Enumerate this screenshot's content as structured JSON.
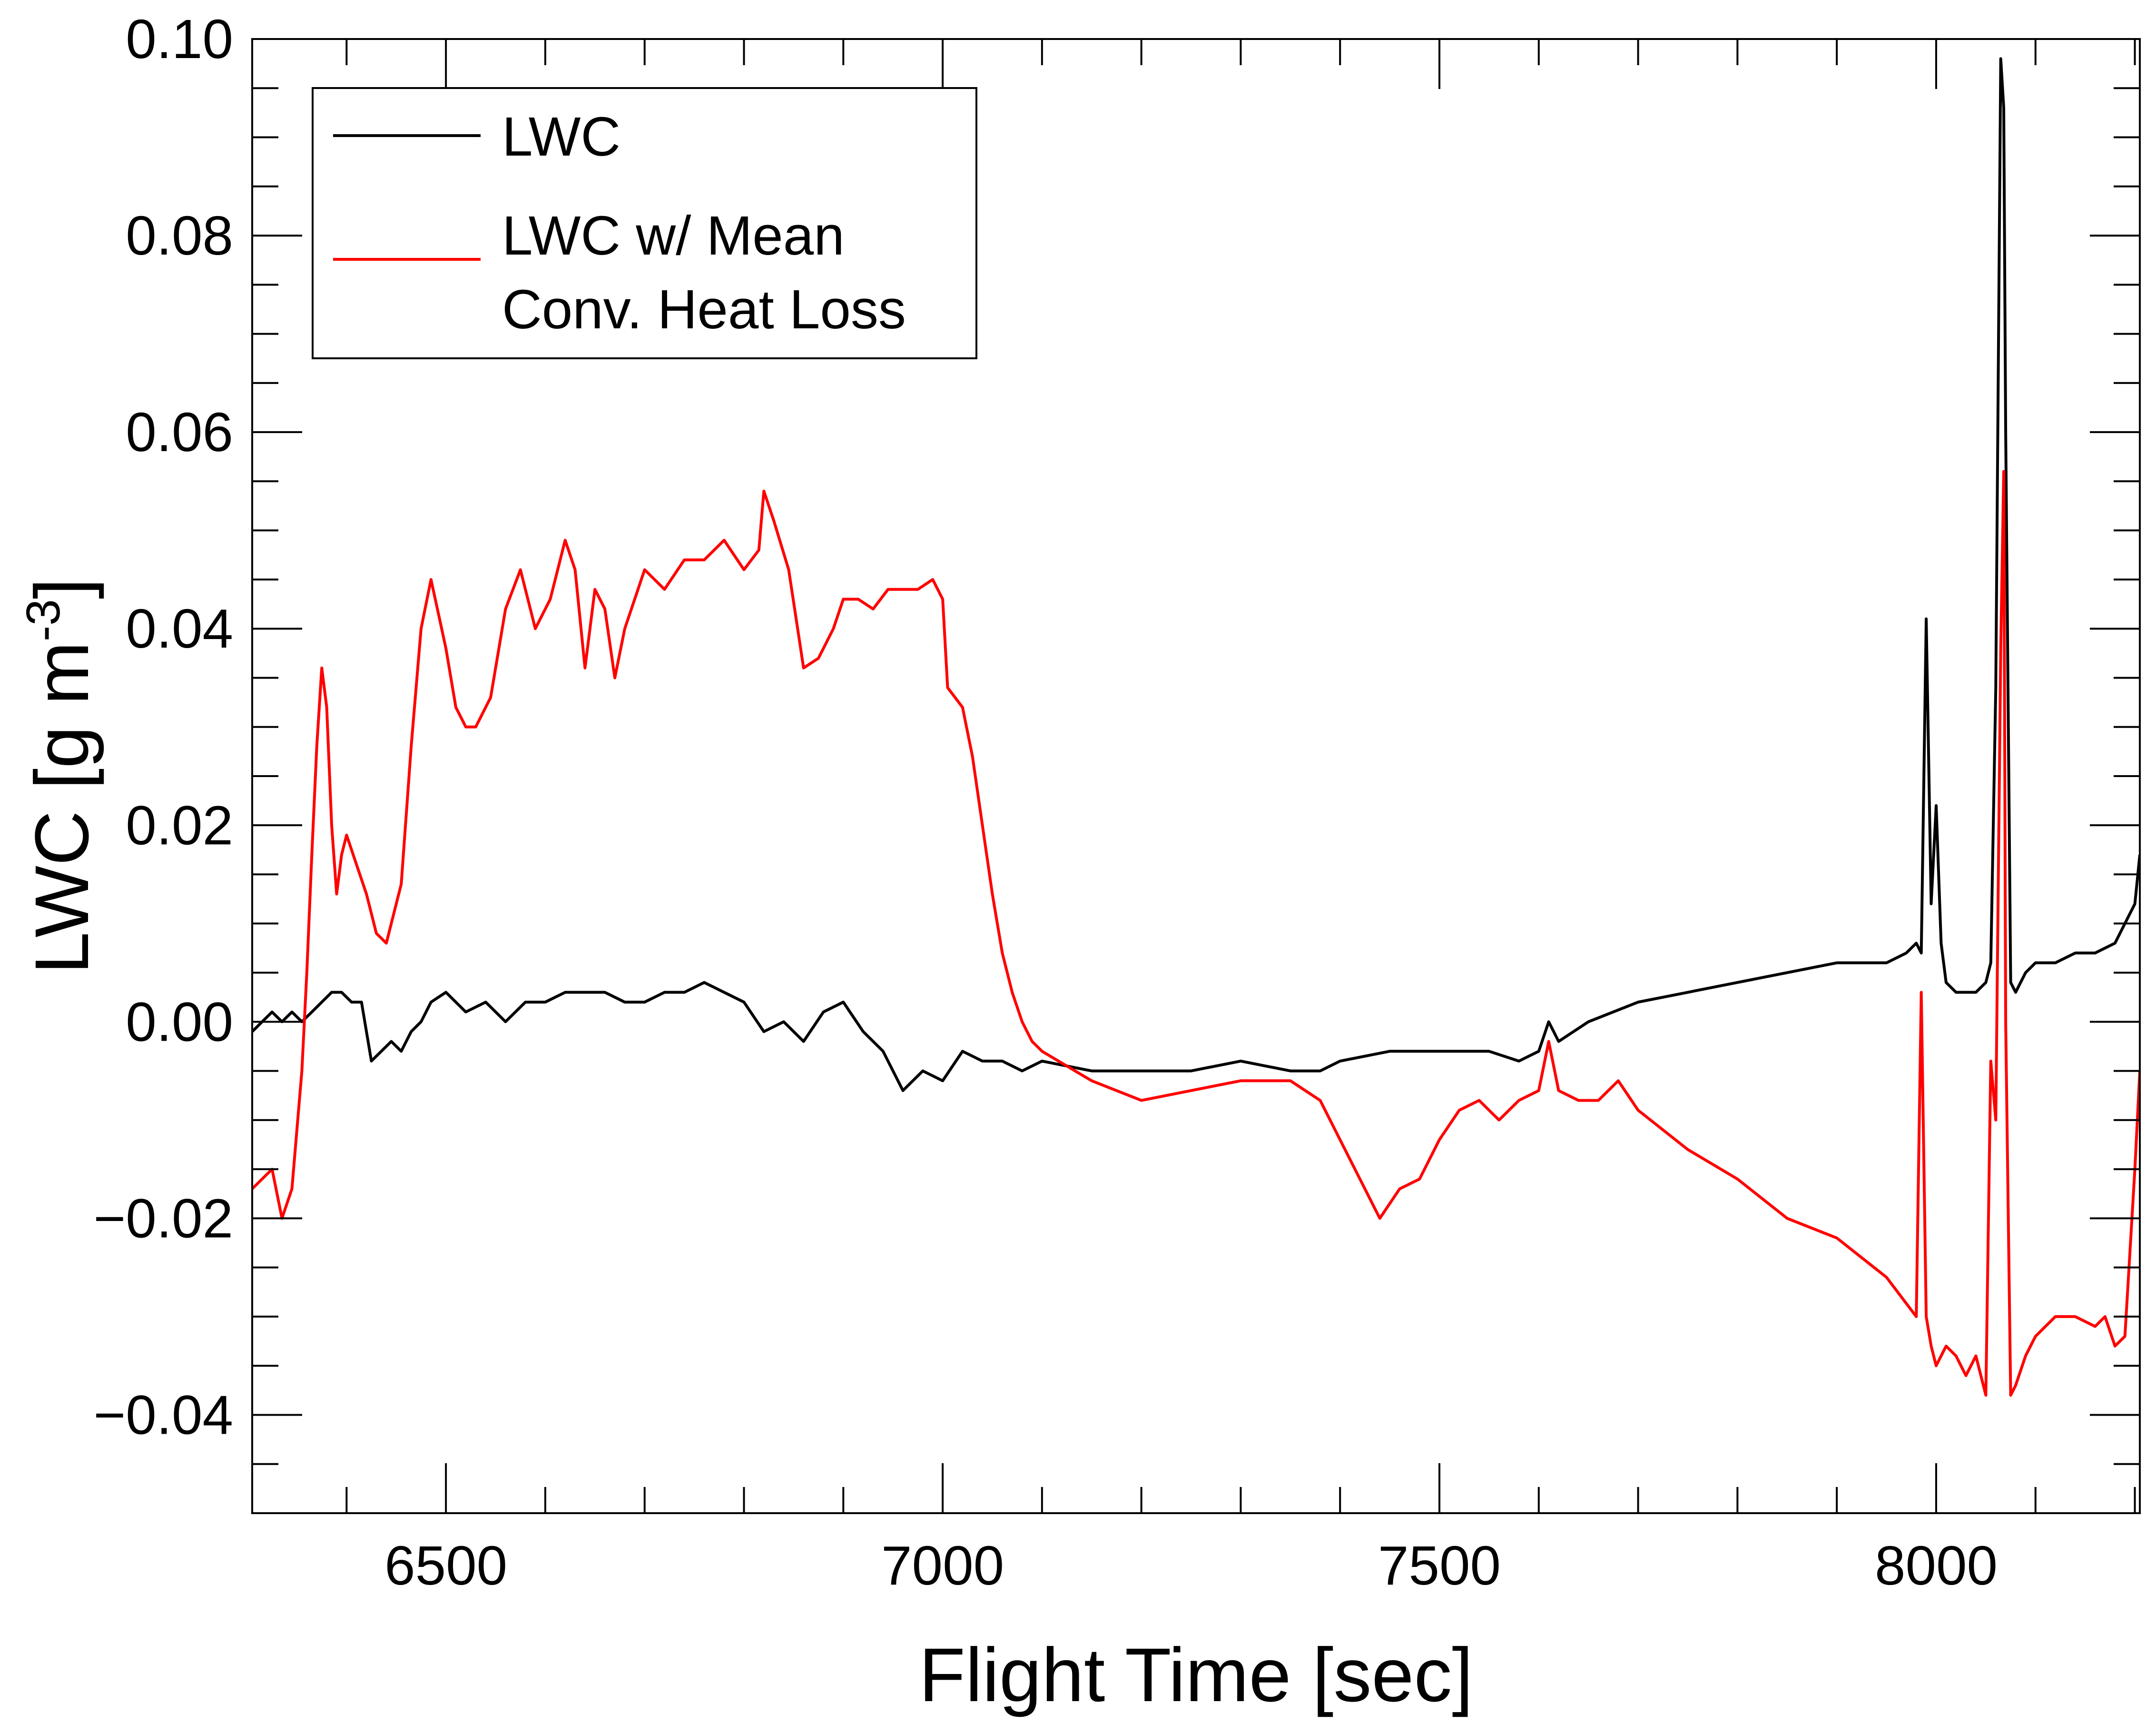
{
  "chart_data": {
    "type": "line",
    "xlabel": "Flight Time [sec]",
    "ylabel_main": "LWC [g m",
    "ylabel_sup": "-3",
    "ylabel_close": "]",
    "xlim": [
      6305,
      8205
    ],
    "ylim": [
      -0.05,
      0.1
    ],
    "x_ticks": [
      6500,
      7000,
      7500,
      8000
    ],
    "x_tick_labels": [
      "6500",
      "7000",
      "7500",
      "8000"
    ],
    "x_minor_step": 100,
    "y_ticks": [
      -0.04,
      -0.02,
      0.0,
      0.02,
      0.04,
      0.06,
      0.08,
      0.1
    ],
    "y_tick_labels": [
      "−0.04",
      "−0.02",
      "0.00",
      "0.02",
      "0.04",
      "0.06",
      "0.08",
      "0.10"
    ],
    "y_minor_step": 0.005,
    "grid": false,
    "legend_position": "top-left",
    "series": [
      {
        "name": "LWC",
        "color": "#000000",
        "x": [
          6305,
          6315,
          6325,
          6335,
          6345,
          6355,
          6365,
          6375,
          6385,
          6395,
          6405,
          6415,
          6425,
          6435,
          6445,
          6455,
          6465,
          6475,
          6485,
          6500,
          6520,
          6540,
          6560,
          6580,
          6600,
          6620,
          6640,
          6660,
          6680,
          6700,
          6720,
          6740,
          6760,
          6780,
          6800,
          6820,
          6840,
          6860,
          6880,
          6900,
          6920,
          6940,
          6960,
          6980,
          7000,
          7020,
          7040,
          7060,
          7080,
          7100,
          7150,
          7200,
          7250,
          7300,
          7350,
          7380,
          7400,
          7450,
          7500,
          7550,
          7580,
          7600,
          7610,
          7620,
          7650,
          7700,
          7750,
          7800,
          7850,
          7900,
          7950,
          7970,
          7980,
          7985,
          7990,
          7995,
          8000,
          8005,
          8010,
          8020,
          8030,
          8040,
          8050,
          8055,
          8060,
          8065,
          8068,
          8070,
          8075,
          8080,
          8090,
          8100,
          8120,
          8140,
          8160,
          8180,
          8190,
          8200,
          8205
        ],
        "y": [
          -0.001,
          0.0,
          0.001,
          0.0,
          0.001,
          0.0,
          0.001,
          0.002,
          0.003,
          0.003,
          0.002,
          0.002,
          -0.004,
          -0.003,
          -0.002,
          -0.003,
          -0.001,
          0.0,
          0.002,
          0.003,
          0.001,
          0.002,
          0.0,
          0.002,
          0.002,
          0.003,
          0.003,
          0.003,
          0.002,
          0.002,
          0.003,
          0.003,
          0.004,
          0.003,
          0.002,
          -0.001,
          0.0,
          -0.002,
          0.001,
          0.002,
          -0.001,
          -0.003,
          -0.007,
          -0.005,
          -0.006,
          -0.003,
          -0.004,
          -0.004,
          -0.005,
          -0.004,
          -0.005,
          -0.005,
          -0.005,
          -0.004,
          -0.005,
          -0.005,
          -0.004,
          -0.003,
          -0.003,
          -0.003,
          -0.004,
          -0.003,
          0.0,
          -0.002,
          0.0,
          0.002,
          0.003,
          0.004,
          0.005,
          0.006,
          0.006,
          0.007,
          0.008,
          0.007,
          0.041,
          0.012,
          0.022,
          0.008,
          0.004,
          0.003,
          0.003,
          0.003,
          0.004,
          0.006,
          0.034,
          0.098,
          0.093,
          0.06,
          0.004,
          0.003,
          0.005,
          0.006,
          0.006,
          0.007,
          0.007,
          0.008,
          0.01,
          0.012,
          0.017
        ]
      },
      {
        "name": "LWC w/ Mean Conv. Heat Loss",
        "color": "#ff0000",
        "x": [
          6305,
          6315,
          6325,
          6335,
          6345,
          6355,
          6360,
          6365,
          6370,
          6375,
          6380,
          6385,
          6390,
          6395,
          6400,
          6410,
          6420,
          6430,
          6440,
          6445,
          6455,
          6465,
          6475,
          6485,
          6500,
          6510,
          6520,
          6530,
          6545,
          6560,
          6575,
          6590,
          6605,
          6620,
          6630,
          6640,
          6650,
          6660,
          6670,
          6680,
          6700,
          6720,
          6740,
          6760,
          6780,
          6800,
          6815,
          6820,
          6830,
          6845,
          6860,
          6875,
          6890,
          6900,
          6915,
          6930,
          6945,
          6960,
          6975,
          6990,
          7000,
          7005,
          7020,
          7030,
          7040,
          7050,
          7060,
          7070,
          7080,
          7090,
          7100,
          7150,
          7200,
          7250,
          7300,
          7350,
          7380,
          7400,
          7420,
          7440,
          7460,
          7480,
          7500,
          7520,
          7540,
          7560,
          7580,
          7600,
          7610,
          7620,
          7640,
          7660,
          7680,
          7700,
          7750,
          7800,
          7850,
          7900,
          7950,
          7980,
          7985,
          7990,
          7995,
          8000,
          8005,
          8010,
          8020,
          8030,
          8040,
          8050,
          8055,
          8060,
          8065,
          8068,
          8070,
          8075,
          8080,
          8090,
          8100,
          8120,
          8140,
          8160,
          8170,
          8180,
          8190,
          8200,
          8205
        ],
        "y": [
          -0.017,
          -0.016,
          -0.015,
          -0.02,
          -0.017,
          -0.005,
          0.005,
          0.017,
          0.028,
          0.036,
          0.032,
          0.02,
          0.013,
          0.017,
          0.019,
          0.016,
          0.013,
          0.009,
          0.008,
          0.01,
          0.014,
          0.028,
          0.04,
          0.045,
          0.038,
          0.032,
          0.03,
          0.03,
          0.033,
          0.042,
          0.046,
          0.04,
          0.043,
          0.049,
          0.046,
          0.036,
          0.044,
          0.042,
          0.035,
          0.04,
          0.046,
          0.044,
          0.047,
          0.047,
          0.049,
          0.046,
          0.048,
          0.054,
          0.051,
          0.046,
          0.036,
          0.037,
          0.04,
          0.043,
          0.043,
          0.042,
          0.044,
          0.044,
          0.044,
          0.045,
          0.043,
          0.034,
          0.032,
          0.027,
          0.02,
          0.013,
          0.007,
          0.003,
          0.0,
          -0.002,
          -0.003,
          -0.006,
          -0.008,
          -0.007,
          -0.006,
          -0.006,
          -0.008,
          -0.012,
          -0.016,
          -0.02,
          -0.017,
          -0.016,
          -0.012,
          -0.009,
          -0.008,
          -0.01,
          -0.008,
          -0.007,
          -0.002,
          -0.007,
          -0.008,
          -0.008,
          -0.006,
          -0.009,
          -0.013,
          -0.016,
          -0.02,
          -0.022,
          -0.026,
          -0.03,
          0.003,
          -0.03,
          -0.033,
          -0.035,
          -0.034,
          -0.033,
          -0.034,
          -0.036,
          -0.034,
          -0.038,
          -0.004,
          -0.01,
          0.038,
          0.056,
          0.0,
          -0.038,
          -0.037,
          -0.034,
          -0.032,
          -0.03,
          -0.03,
          -0.031,
          -0.03,
          -0.033,
          -0.032,
          -0.015,
          -0.005
        ]
      }
    ],
    "legend": {
      "entry1": "LWC",
      "entry2_line1": "LWC w/ Mean",
      "entry2_line2": "Conv. Heat Loss"
    }
  }
}
